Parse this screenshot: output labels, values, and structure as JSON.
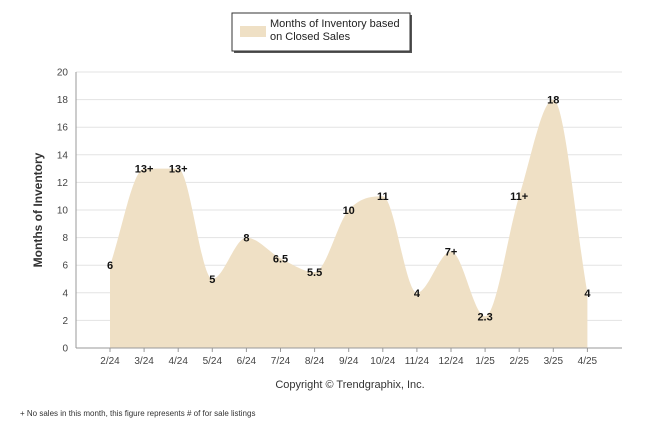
{
  "chart_data": {
    "type": "area",
    "title": "",
    "xlabel": "",
    "ylabel": "Months of Inventory",
    "ylim": [
      0,
      20
    ],
    "yticks": [
      "0",
      "2",
      "4",
      "6",
      "8",
      "10",
      "12",
      "14",
      "16",
      "18",
      "20"
    ],
    "categories": [
      "2/24",
      "3/24",
      "4/24",
      "5/24",
      "6/24",
      "7/24",
      "8/24",
      "9/24",
      "10/24",
      "11/24",
      "12/24",
      "1/25",
      "2/25",
      "3/25",
      "4/25"
    ],
    "series": [
      {
        "name": "Months of Inventory based on Closed Sales",
        "values": [
          6,
          13,
          13,
          5,
          8,
          6.5,
          5.5,
          10,
          11,
          4,
          7,
          2.3,
          11,
          18,
          4
        ],
        "labels": [
          "6",
          "13+",
          "13+",
          "5",
          "8",
          "6.5",
          "5.5",
          "10",
          "11",
          "4",
          "7+",
          "2.3",
          "11+",
          "18",
          "4"
        ],
        "color": "#efe0c5"
      }
    ],
    "legend": {
      "position": "top-center",
      "line1": "Months of Inventory based",
      "line2": "on Closed Sales"
    },
    "grid": true
  },
  "copyright": "Copyright © Trendgraphix, Inc.",
  "footnote": "+  No sales in this month, this figure represents # of for sale listings"
}
